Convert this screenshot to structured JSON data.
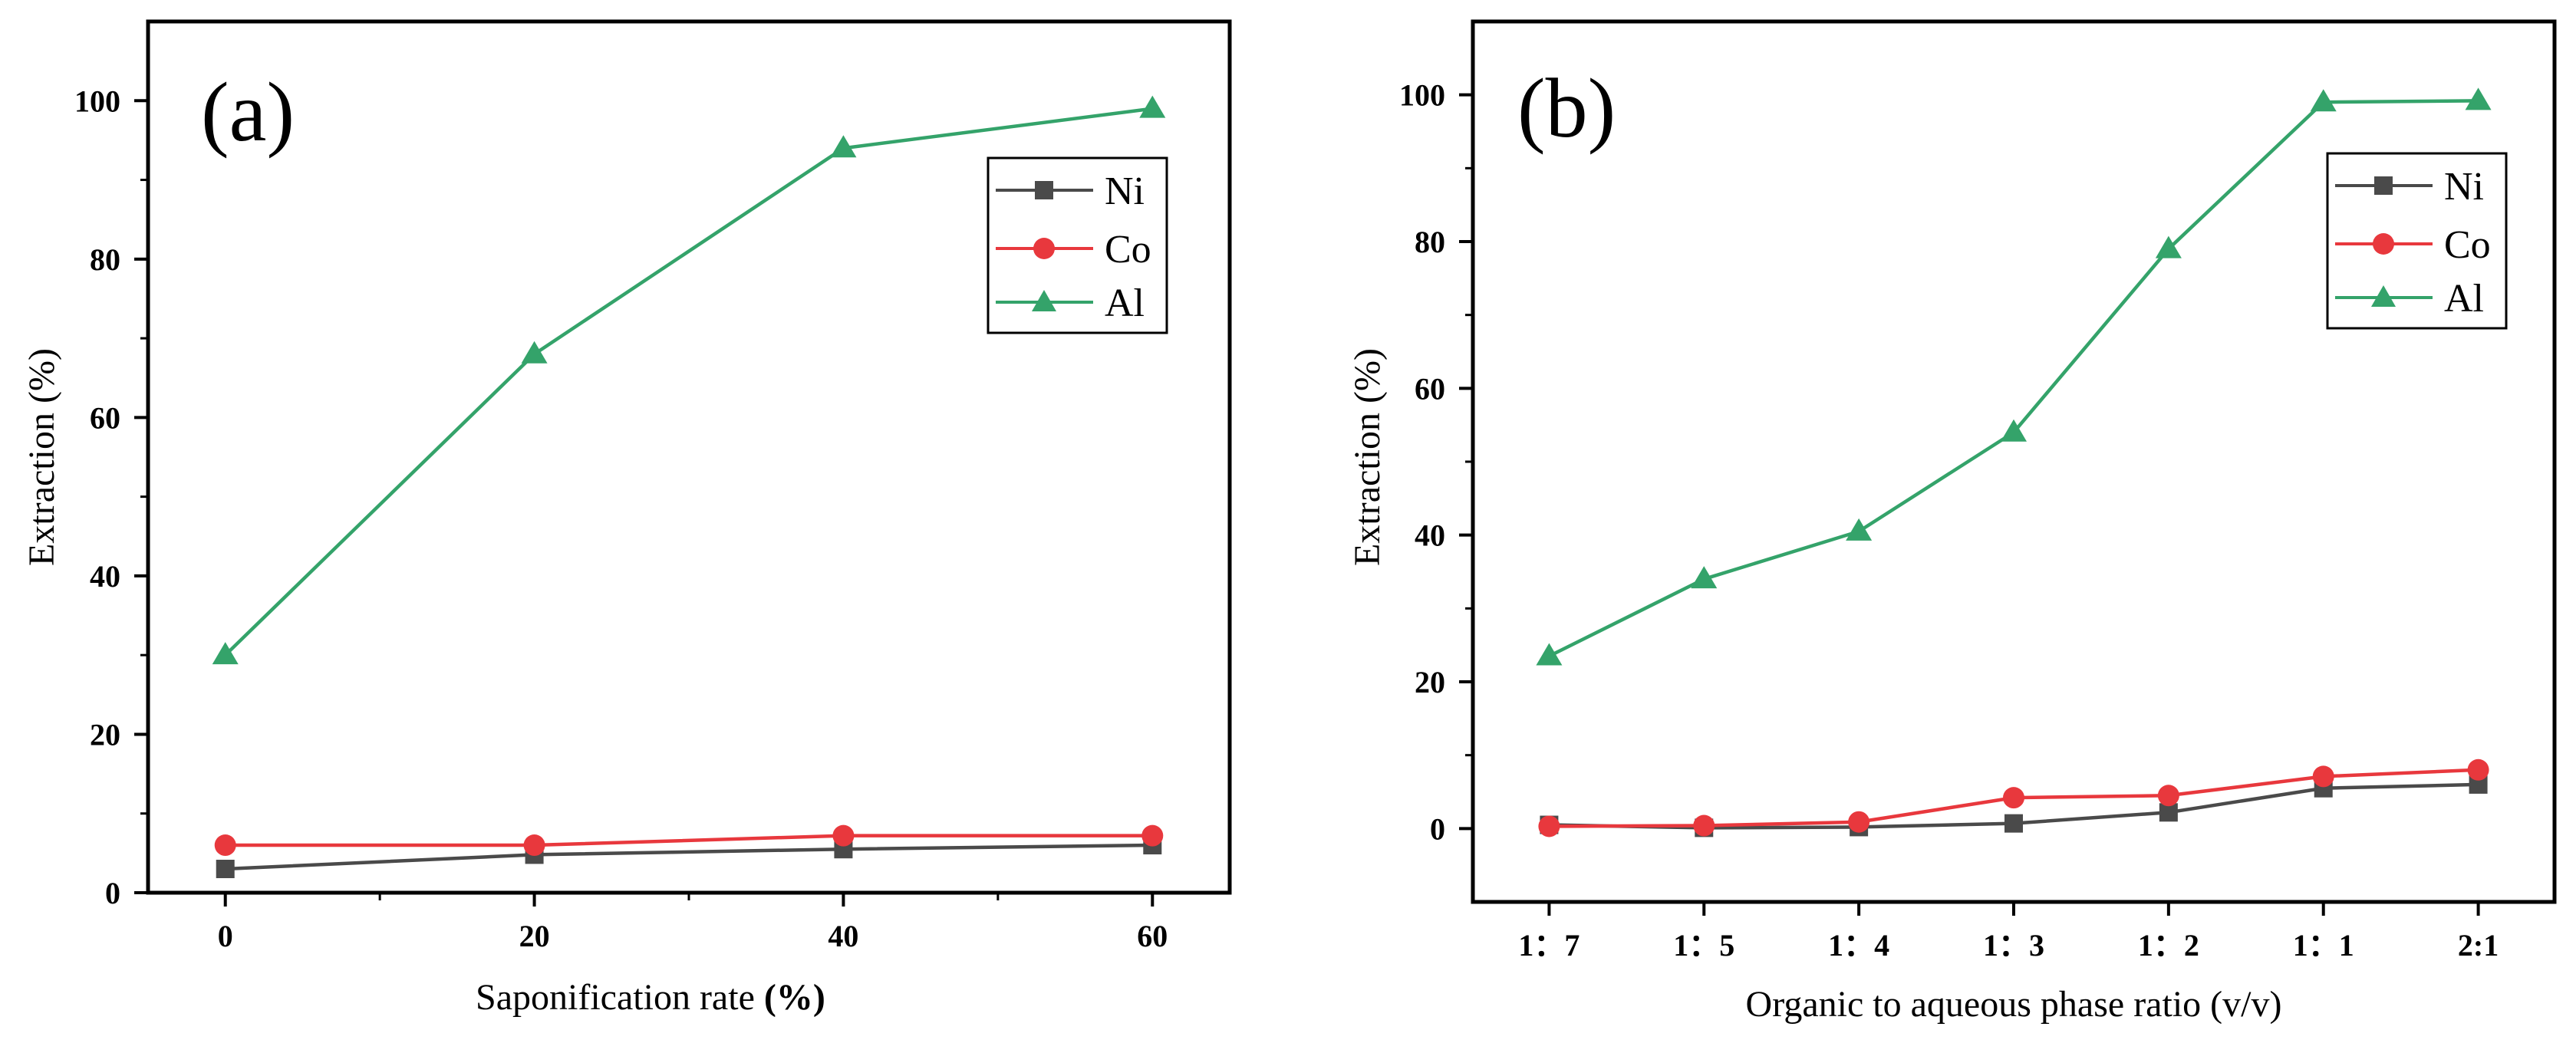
{
  "chart_data": [
    {
      "type": "line",
      "panel_label": "(a)",
      "xlabel": "Saponification rate",
      "xlabel_unit": "(%)",
      "ylabel": "Extraction (%)",
      "x": [
        0,
        20,
        40,
        60
      ],
      "xlim": [
        -5,
        65
      ],
      "ylim": [
        0,
        110
      ],
      "xticks": [
        "0",
        "20",
        "40",
        "60"
      ],
      "yticks": [
        "0",
        "20",
        "40",
        "60",
        "80",
        "100"
      ],
      "legend_position": "top-right",
      "series": [
        {
          "name": "Ni",
          "color": "#4a4a4a",
          "marker": "square",
          "values": [
            3,
            4.8,
            5.5,
            6
          ]
        },
        {
          "name": "Co",
          "color": "#e8383d",
          "marker": "circle",
          "values": [
            6,
            6,
            7.2,
            7.2
          ]
        },
        {
          "name": "Al",
          "color": "#34a36a",
          "marker": "triangle",
          "values": [
            30,
            68,
            94,
            99
          ]
        }
      ]
    },
    {
      "type": "line",
      "panel_label": "(b)",
      "xlabel": "Organic to aqueous phase ratio (v/v)",
      "ylabel": "Extraction (%)",
      "categories": [
        "1：7",
        "1：5",
        "1：4",
        "1：3",
        "1：2",
        "1：1",
        "2:1"
      ],
      "ylim": [
        -10,
        110
      ],
      "yticks": [
        "0",
        "20",
        "40",
        "60",
        "80",
        "100"
      ],
      "legend_position": "top-right",
      "series": [
        {
          "name": "Ni",
          "color": "#4a4a4a",
          "marker": "square",
          "values": [
            0.5,
            0.1,
            0.2,
            0.7,
            2.2,
            5.5,
            6
          ]
        },
        {
          "name": "Co",
          "color": "#e8383d",
          "marker": "circle",
          "values": [
            0.3,
            0.4,
            0.9,
            4.2,
            4.5,
            7.1,
            8
          ]
        },
        {
          "name": "Al",
          "color": "#34a36a",
          "marker": "triangle",
          "values": [
            23.5,
            34,
            40.5,
            54,
            79,
            99,
            99.2
          ]
        }
      ]
    }
  ]
}
